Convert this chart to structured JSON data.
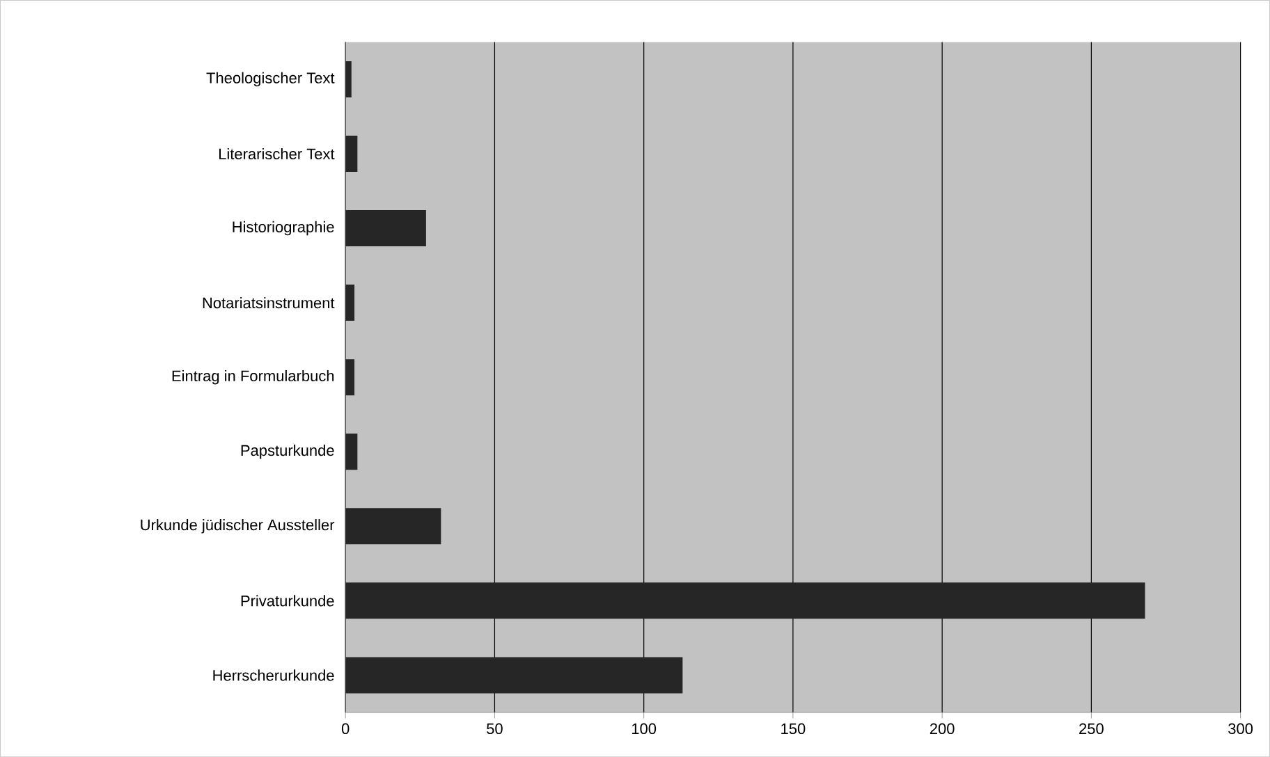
{
  "chart_data": {
    "type": "bar",
    "orientation": "horizontal",
    "categories": [
      "Theologischer Text",
      "Literarischer Text",
      "Historiographie",
      "Notariatsinstrument",
      "Eintrag in Formularbuch",
      "Papsturkunde",
      "Urkunde jüdischer Aussteller",
      "Privaturkunde",
      "Herrscherurkunde"
    ],
    "values": [
      2,
      4,
      27,
      3,
      3,
      4,
      32,
      268,
      113
    ],
    "color": "#262626",
    "xlim": [
      0,
      300
    ],
    "xticks": [
      0,
      50,
      100,
      150,
      200,
      250,
      300
    ],
    "grid": "x"
  }
}
